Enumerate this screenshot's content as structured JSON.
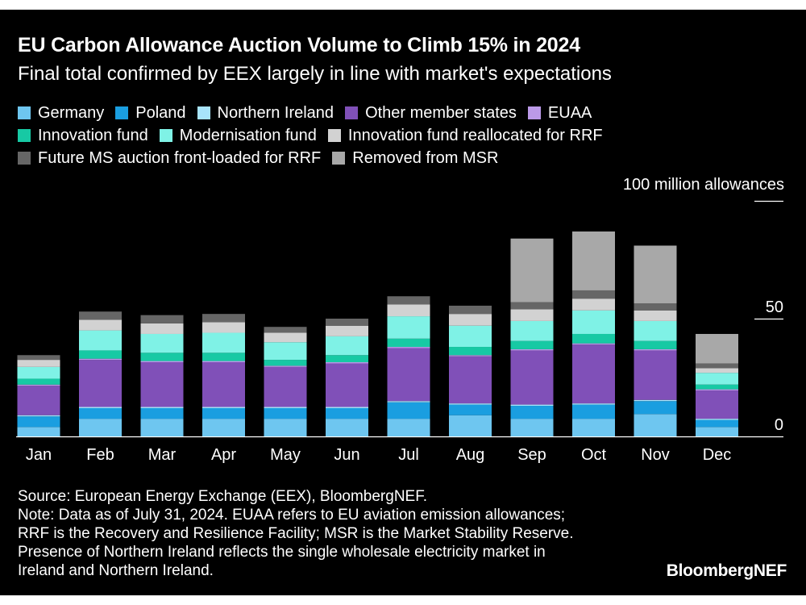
{
  "header": {
    "title": "EU Carbon Allowance Auction Volume to Climb 15% in 2024",
    "subtitle": "Final total confirmed by EEX largely in line with market's expectations"
  },
  "chart_data": {
    "type": "bar",
    "stacked": true,
    "unit_label": "100 million allowances",
    "categories": [
      "Jan",
      "Feb",
      "Mar",
      "Apr",
      "May",
      "Jun",
      "Jul",
      "Aug",
      "Sep",
      "Oct",
      "Nov",
      "Dec"
    ],
    "y_ticks": [
      "0",
      "50"
    ],
    "y_tick_values": [
      0,
      50
    ],
    "ylim": [
      0,
      100
    ],
    "grid": false,
    "legend_rows": [
      [
        "Germany",
        "Poland",
        "Northern Ireland",
        "Other member states",
        "EUAA"
      ],
      [
        "Innovation fund",
        "Modernisation fund",
        "Innovation fund reallocated for RRF"
      ],
      [
        "Future MS auction front-loaded for RRF",
        "Removed from MSR"
      ]
    ],
    "series": [
      {
        "name": "Germany",
        "color": "#6ec6f0",
        "values": [
          4,
          7.5,
          7.5,
          7.5,
          7.5,
          7.5,
          7.5,
          9,
          7.5,
          7.5,
          9.5,
          4
        ]
      },
      {
        "name": "Poland",
        "color": "#1a9ee0",
        "values": [
          4.5,
          4.5,
          4.5,
          4.5,
          4.5,
          4.5,
          7,
          4.5,
          5.5,
          6,
          5.5,
          3
        ]
      },
      {
        "name": "Northern Ireland",
        "color": "#a8e4fb",
        "values": [
          0.5,
          0.5,
          0.5,
          0.5,
          0.5,
          0.5,
          0.5,
          0.5,
          0.5,
          0.5,
          0.5,
          0.5
        ]
      },
      {
        "name": "Other member states",
        "color": "#8050b8",
        "values": [
          12.5,
          20,
          19,
          19,
          17,
          18.5,
          22.5,
          20,
          23,
          25,
          21,
          12
        ]
      },
      {
        "name": "EUAA",
        "color": "#bb99e8",
        "values": [
          0.5,
          0.5,
          0.5,
          0.5,
          0.5,
          0.5,
          0.5,
          0.5,
          0.5,
          0.5,
          0.5,
          0.5
        ]
      },
      {
        "name": "Innovation fund",
        "color": "#17c9a4",
        "values": [
          2.5,
          3.5,
          3.5,
          3.5,
          2.5,
          3,
          3.5,
          3.5,
          3.5,
          4,
          3.5,
          2
        ]
      },
      {
        "name": "Modernisation fund",
        "color": "#7ff2e6",
        "values": [
          5,
          8.5,
          8,
          8.5,
          7.5,
          8,
          9.5,
          9,
          8.5,
          10,
          8.5,
          5
        ]
      },
      {
        "name": "Innovation fund reallocated for RRF",
        "color": "#d2d2d2",
        "values": [
          3,
          4.5,
          4.5,
          4.5,
          4,
          4.5,
          5,
          5,
          5,
          5,
          4.5,
          2
        ]
      },
      {
        "name": "Future MS auction front-loaded for RRF",
        "color": "#666666",
        "values": [
          2,
          3.5,
          3.5,
          3.5,
          2.5,
          3,
          3.5,
          3.5,
          3,
          3.5,
          3,
          2
        ]
      },
      {
        "name": "Removed from MSR",
        "color": "#a8a8a8",
        "values": [
          0,
          0,
          0,
          0,
          0,
          0,
          0,
          0,
          27,
          25,
          24.5,
          12.5
        ]
      }
    ]
  },
  "footer": {
    "source": "Source: European Energy Exchange (EEX), BloombergNEF.",
    "note_lines": [
      "Note: Data as of July 31, 2024. EUAA refers to EU aviation emission allowances;",
      "RRF is the Recovery and Resilience Facility; MSR is the Market Stability Reserve.",
      "Presence of Northern Ireland reflects the single wholesale electricity market in",
      "Ireland and Northern Ireland."
    ],
    "brand": "BloombergNEF"
  }
}
